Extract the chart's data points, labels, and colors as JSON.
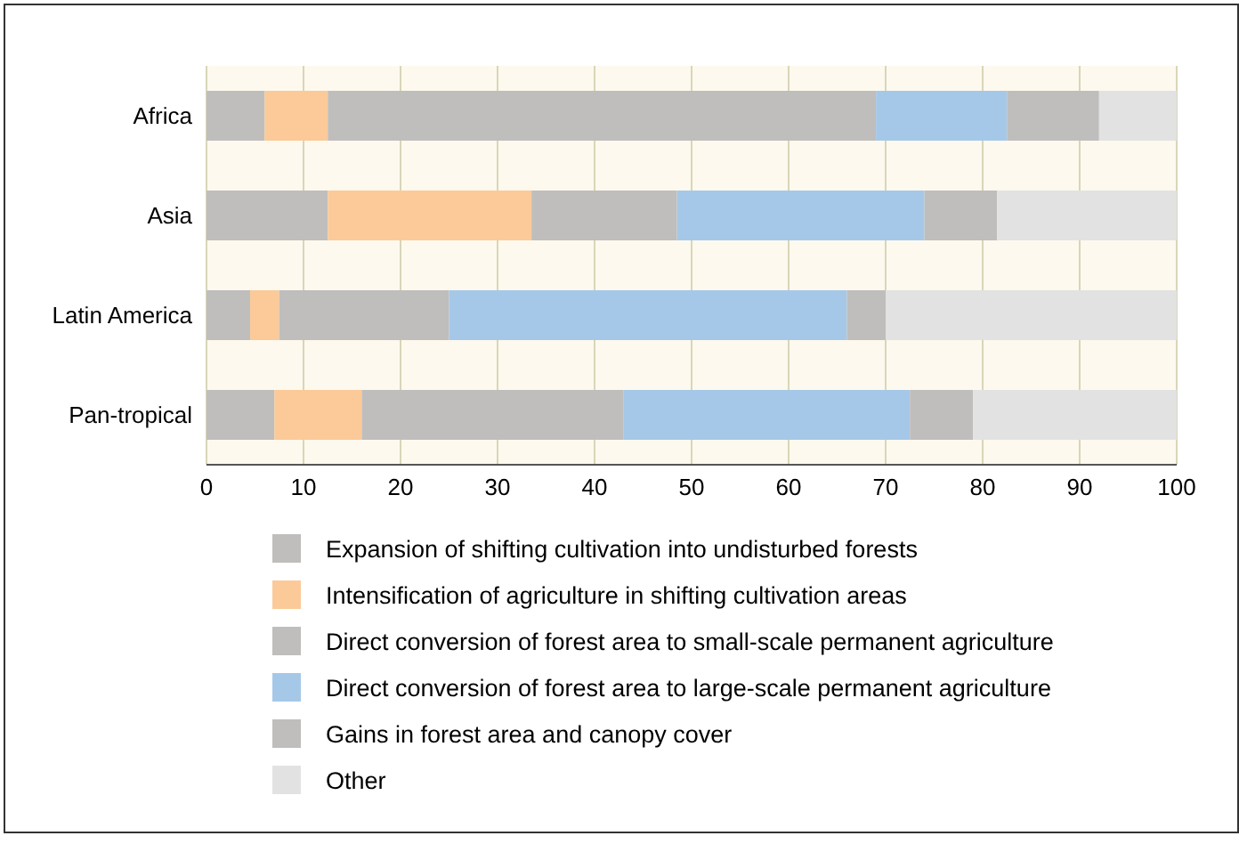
{
  "chart_data": {
    "type": "bar",
    "orientation": "horizontal",
    "stacked": true,
    "categories": [
      "Africa",
      "Asia",
      "Latin America",
      "Pan-tropical"
    ],
    "series": [
      {
        "name": "Expansion of shifting cultivation into undisturbed forests",
        "color": "#bfbebd",
        "values": [
          6,
          12.5,
          4.5,
          7
        ]
      },
      {
        "name": "Intensification of agriculture in shifting cultivation areas",
        "color": "#fbca98",
        "values": [
          6.5,
          21,
          3,
          9
        ]
      },
      {
        "name": "Direct conversion of forest area to small-scale permanent agriculture",
        "color": "#bfbebd",
        "values": [
          56.5,
          15,
          17.5,
          27
        ]
      },
      {
        "name": "Direct conversion of forest area to large-scale permanent agriculture",
        "color": "#a6c8e8",
        "values": [
          13.5,
          25.5,
          41,
          29.5
        ]
      },
      {
        "name": "Gains in forest area and canopy cover",
        "color": "#bfbebd",
        "values": [
          9.5,
          7.5,
          4,
          6.5
        ]
      },
      {
        "name": "Other",
        "color": "#e2e2e2",
        "values": [
          8,
          18.5,
          30,
          21
        ]
      }
    ],
    "xlim": [
      0,
      100
    ],
    "xticks": [
      0,
      10,
      20,
      30,
      40,
      50,
      60,
      70,
      80,
      90,
      100
    ],
    "grid": "x",
    "legend": "bottom"
  }
}
